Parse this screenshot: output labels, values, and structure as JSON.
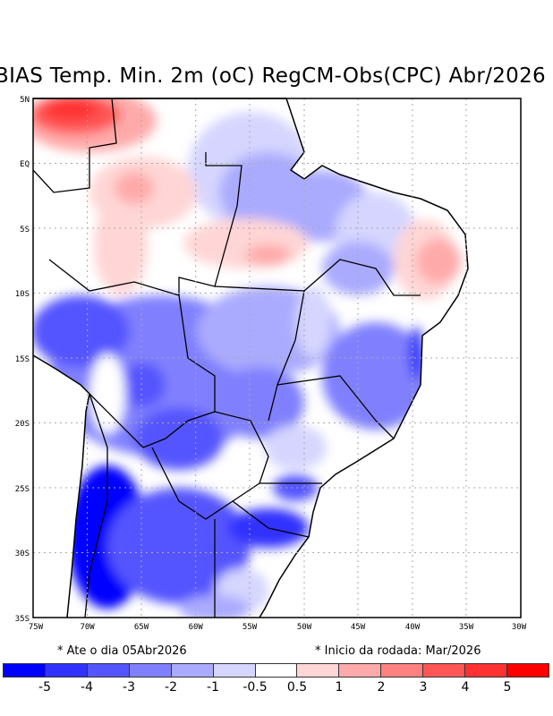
{
  "title": "BIAS Temp. Min. 2m (oC) RegCM-Obs(CPC) Abr/2026",
  "lat_labels": [
    "5N",
    "EQ",
    "5S",
    "10S",
    "15S",
    "20S",
    "25S",
    "30S",
    "35S"
  ],
  "lon_labels": [
    "75W",
    "70W",
    "65W",
    "60W",
    "55W",
    "50W",
    "45W",
    "40W",
    "35W",
    "30W"
  ],
  "note_left": "* Ate o dia 05Abr2026",
  "note_right": "* Inicio da rodada: Mar/2026",
  "colorbar": {
    "colors": [
      "#0000ff",
      "#3232ff",
      "#5555ff",
      "#8080ff",
      "#aaaaff",
      "#d5d5ff",
      "#ffffff",
      "#ffd5d5",
      "#ffaaaa",
      "#ff8080",
      "#ff5555",
      "#ff3232",
      "#ff0000"
    ],
    "labels": [
      "-5",
      "-4",
      "-3",
      "-2",
      "-1",
      "-0.5",
      "0.5",
      "1",
      "2",
      "3",
      "4",
      "5"
    ]
  }
}
